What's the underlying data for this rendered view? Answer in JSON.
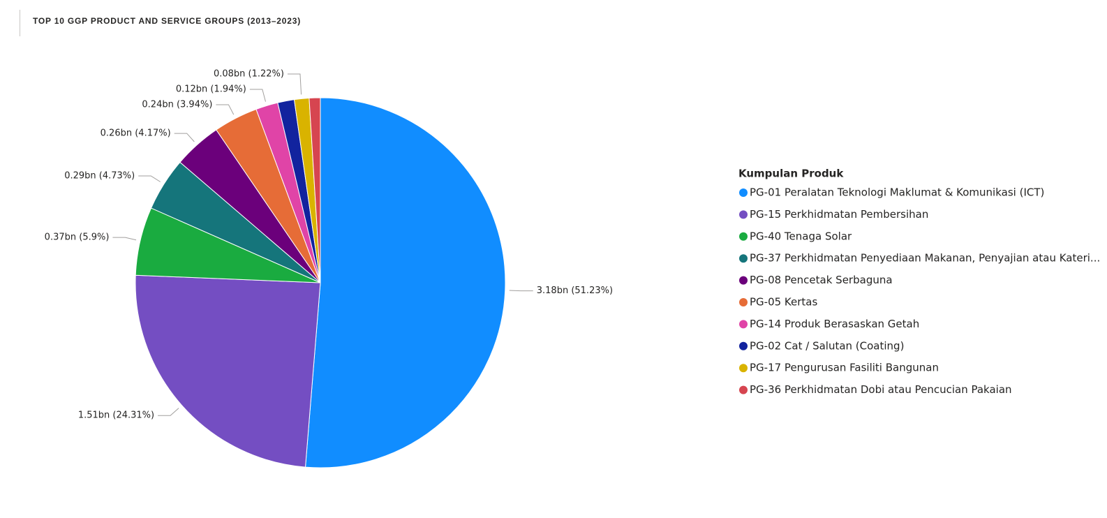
{
  "chart_data": {
    "type": "pie",
    "title": "TOP 10 GGP PRODUCT AND SERVICE GROUPS (2013–2023)",
    "legend_title": "Kumpulan Produk",
    "legend_position": "right",
    "categories": [
      "PG-01 Peralatan Teknologi Maklumat & Komunikasi (ICT)",
      "PG-15 Perkhidmatan Pembersihan",
      "PG-40 Tenaga Solar",
      "PG-37 Perkhidmatan Penyediaan Makanan, Penyajian atau Kateri...",
      "PG-08 Pencetak Serbaguna",
      "PG-05 Kertas",
      "PG-14 Produk Berasaskan Getah",
      "PG-02 Cat / Salutan (Coating)",
      "PG-17 Pengurusan Fasiliti Bangunan",
      "PG-36 Perkhidmatan Dobi atau Pencucian Pakaian"
    ],
    "values": [
      3.18,
      1.51,
      0.37,
      0.29,
      0.26,
      0.24,
      0.12,
      0.09,
      0.08,
      0.06
    ],
    "value_labels": [
      "3.18bn (51.23%)",
      "1.51bn (24.31%)",
      "0.37bn (5.9%)",
      "0.29bn (4.73%)",
      "0.26bn (4.17%)",
      "0.24bn (3.94%)",
      "0.12bn (1.94%)",
      null,
      "0.08bn (1.22%)",
      null
    ],
    "colors": [
      "#118DFF",
      "#744EC2",
      "#1AAB40",
      "#15757B",
      "#6B007B",
      "#E66C37",
      "#E044A7",
      "#12239E",
      "#D9B300",
      "#D64550"
    ]
  }
}
